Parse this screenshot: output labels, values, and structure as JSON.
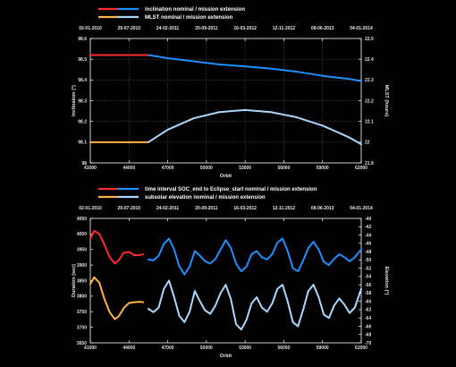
{
  "chart_data": [
    {
      "type": "line",
      "legend_placement": "top-left",
      "x_dates": [
        "02-01-2010",
        "29-07-2010",
        "24-02-2011",
        "20-09-2011",
        "16-03-2012",
        "12-11-2012",
        "08-06-2013",
        "04-01-2014"
      ],
      "xlabel": "Orbit",
      "xlim": [
        41000,
        62000
      ],
      "x_ticks": [
        "41000",
        "44000",
        "47000",
        "50000",
        "53000",
        "56000",
        "59000",
        "62000"
      ],
      "ylabel": "Inclination (°)",
      "ylim": [
        98.0,
        98.6
      ],
      "y_ticks": [
        "98",
        "98.1",
        "98.2",
        "98.3",
        "98.4",
        "98.5",
        "98.6"
      ],
      "y2label": "MLST (hours)",
      "y2lim": [
        21.9,
        22.5
      ],
      "y2_ticks": [
        "21.9",
        "22",
        "22.1",
        "22.2",
        "22.3",
        "22.4",
        "22.5"
      ],
      "grid": true,
      "series": [
        {
          "name": "inclination nominal / mission extension",
          "axis": "left",
          "segments": [
            {
              "color": "#ff2a2a",
              "x": [
                41000,
                45500
              ],
              "y": [
                98.52,
                98.52
              ]
            },
            {
              "color": "#1e8fff",
              "x": [
                45500,
                47000,
                49000,
                51000,
                53000,
                55000,
                57000,
                59000,
                61000,
                62000
              ],
              "y": [
                98.52,
                98.505,
                98.49,
                98.475,
                98.465,
                98.455,
                98.44,
                98.42,
                98.405,
                98.395
              ]
            }
          ]
        },
        {
          "name": "MLST nominal / mission extension",
          "axis": "right",
          "segments": [
            {
              "color": "#ffb347",
              "x": [
                41000,
                45500
              ],
              "y": [
                22.0,
                22.0
              ]
            },
            {
              "color": "#a8d8ff",
              "x": [
                45500,
                47000,
                49000,
                51000,
                53000,
                55000,
                57000,
                59000,
                61000,
                62000
              ],
              "y": [
                22.0,
                22.06,
                22.115,
                22.145,
                22.155,
                22.145,
                22.12,
                22.08,
                22.025,
                21.99
              ]
            }
          ]
        }
      ]
    },
    {
      "type": "line",
      "legend_placement": "top-left",
      "x_dates": [
        "02-01-2010",
        "29-07-2010",
        "24-02-2011",
        "20-09-2011",
        "16-03-2012",
        "12-11-2012",
        "08-06-2013",
        "04-01-2014"
      ],
      "xlabel": "Orbit",
      "xlim": [
        41000,
        62000
      ],
      "x_ticks": [
        "41000",
        "44000",
        "47000",
        "50000",
        "53000",
        "56000",
        "59000",
        "62000"
      ],
      "ylabel": "Duration (sec)",
      "ylim": [
        3650,
        4050
      ],
      "y_ticks": [
        "3650",
        "3700",
        "3750",
        "3800",
        "3850",
        "3900",
        "3950",
        "4000",
        "4050"
      ],
      "y2label": "Elevation (°)",
      "y2lim": [
        -70,
        -40
      ],
      "y2_ticks": [
        "-70",
        "-68",
        "-66",
        "-64",
        "-62",
        "-60",
        "-58",
        "-56",
        "-54",
        "-52",
        "-50",
        "-48",
        "-46",
        "-44",
        "-42",
        "-40"
      ],
      "grid": false,
      "series": [
        {
          "name": "time interval SOC_end to Eclipse_start nominal / mission extension",
          "axis": "left",
          "segments": [
            {
              "color": "#ff2a2a",
              "x": [
                41000,
                41300,
                41700,
                42100,
                42500,
                42900,
                43200,
                43600,
                44000,
                44400,
                44800,
                45100
              ],
              "y": [
                3985,
                4010,
                4000,
                3965,
                3925,
                3905,
                3915,
                3940,
                3942,
                3932,
                3932,
                3935
              ]
            },
            {
              "color": "#1e8fff",
              "x": [
                45500,
                45900,
                46300,
                46700,
                47100,
                47500,
                47900,
                48300,
                48700,
                49100,
                49500,
                49900,
                50300,
                50700,
                51100,
                51500,
                51900,
                52300,
                52700,
                53100,
                53500,
                53900,
                54300,
                54700,
                55100,
                55500,
                55900,
                56300,
                56700,
                57100,
                57500,
                57900,
                58300,
                58700,
                59100,
                59500,
                59900,
                60300,
                60700,
                61100,
                61500,
                62000
              ],
              "y": [
                3918,
                3915,
                3930,
                3968,
                3985,
                3950,
                3895,
                3870,
                3895,
                3945,
                3930,
                3912,
                3905,
                3920,
                3950,
                3980,
                3955,
                3905,
                3880,
                3895,
                3935,
                3945,
                3925,
                3918,
                3935,
                3972,
                3985,
                3945,
                3890,
                3880,
                3915,
                3955,
                3975,
                3950,
                3910,
                3900,
                3920,
                3935,
                3925,
                3912,
                3925,
                3950
              ]
            }
          ]
        },
        {
          "name": "subsolar elevation nominal / mission extension",
          "axis": "right",
          "segments": [
            {
              "color": "#ffb347",
              "x": [
                41000,
                41300,
                41700,
                42100,
                42500,
                42900,
                43200,
                43600,
                44000,
                44400,
                44800,
                45100
              ],
              "y": [
                -55.8,
                -54.2,
                -55.5,
                -59.5,
                -62.6,
                -64.3,
                -63.6,
                -61.6,
                -60.4,
                -60.2,
                -60.1,
                -60.2
              ]
            },
            {
              "color": "#a8d8ff",
              "x": [
                45500,
                45900,
                46300,
                46700,
                47100,
                47500,
                47900,
                48300,
                48700,
                49100,
                49500,
                49900,
                50300,
                50700,
                51100,
                51500,
                51900,
                52300,
                52700,
                53100,
                53500,
                53900,
                54300,
                54700,
                55100,
                55500,
                55900,
                56300,
                56700,
                57100,
                57500,
                57900,
                58300,
                58700,
                59100,
                59500,
                59900,
                60300,
                60700,
                61100,
                61500,
                62000
              ],
              "y": [
                -61.8,
                -62.6,
                -61.5,
                -57.0,
                -55.0,
                -59.0,
                -63.5,
                -65.0,
                -62.5,
                -57.5,
                -60.0,
                -62.2,
                -63.0,
                -61.0,
                -58.0,
                -56.0,
                -59.5,
                -65.5,
                -66.8,
                -64.5,
                -60.5,
                -59.0,
                -61.5,
                -62.5,
                -60.5,
                -57.0,
                -56.0,
                -60.0,
                -65.0,
                -66.0,
                -62.0,
                -57.5,
                -56.0,
                -59.0,
                -63.2,
                -64.0,
                -61.0,
                -59.3,
                -60.8,
                -62.8,
                -61.5,
                -57.0
              ]
            }
          ]
        }
      ]
    }
  ]
}
